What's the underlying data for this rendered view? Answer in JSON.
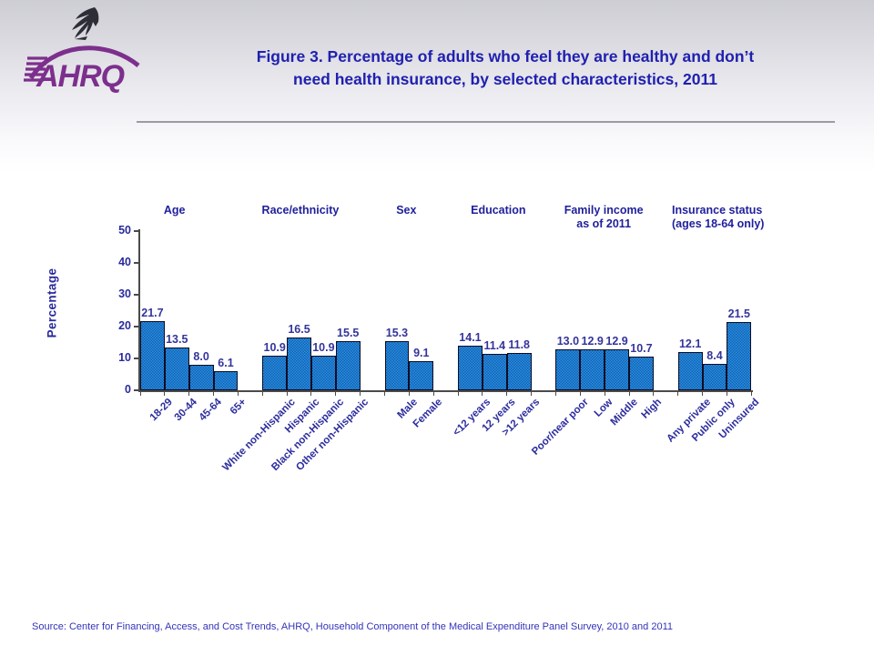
{
  "header": {
    "title_line1": "Figure 3. Percentage of adults who feel they are healthy and don’t",
    "title_line2": "need health insurance, by selected characteristics, 2011",
    "logo_text": "AHRQ"
  },
  "footer": {
    "source": "Source: Center for Financing, Access, and Cost Trends, AHRQ, Household Component of the Medical Expenditure Panel Survey, 2010 and 2011"
  },
  "colors": {
    "title_blue": "#2020b0",
    "chart_text_blue": "#2a2a9c",
    "bar_fill": "#1470c8",
    "bar_border": "#0c0c24",
    "logo_purple": "#7d2f8d",
    "source_blue": "#3333bb"
  },
  "icons": [
    "hhs-eagle-icon",
    "ahrq-logo"
  ],
  "chart_data": {
    "type": "bar",
    "title": "Percentage of adults who feel they are healthy and don’t need health insurance, by selected characteristics, 2011",
    "xlabel": "",
    "ylabel": "Percentage",
    "ylim": [
      0,
      50
    ],
    "yticks": [
      0,
      10,
      20,
      30,
      40,
      50
    ],
    "grid": false,
    "legend": "none",
    "groups": [
      {
        "label": "Age",
        "label2": "",
        "categories": [
          "18-29",
          "30-44",
          "45-64",
          "65+"
        ],
        "values": [
          21.7,
          13.5,
          8.0,
          6.1
        ]
      },
      {
        "label": "Race/ethnicity",
        "label2": "",
        "categories": [
          "White non-Hispanic",
          "Hispanic",
          "Black non-Hispanic",
          "Other non-Hispanic"
        ],
        "values": [
          10.9,
          16.5,
          10.9,
          15.5
        ]
      },
      {
        "label": "Sex",
        "label2": "",
        "categories": [
          "Male",
          "Female"
        ],
        "values": [
          15.3,
          9.1
        ]
      },
      {
        "label": "Education",
        "label2": "",
        "categories": [
          "<12 years",
          "12 years",
          ">12 years"
        ],
        "values": [
          14.1,
          11.4,
          11.8
        ]
      },
      {
        "label": "Family income",
        "label2": "as of 2011",
        "categories": [
          "Poor/near poor",
          "Low",
          "Middle",
          "High"
        ],
        "values": [
          13.0,
          12.9,
          12.9,
          10.7
        ]
      },
      {
        "label": "Insurance status",
        "label2": "(ages 18-64 only)",
        "categories": [
          "Any private",
          "Public only",
          "Uninsured"
        ],
        "values": [
          12.1,
          8.4,
          21.5
        ]
      }
    ]
  }
}
